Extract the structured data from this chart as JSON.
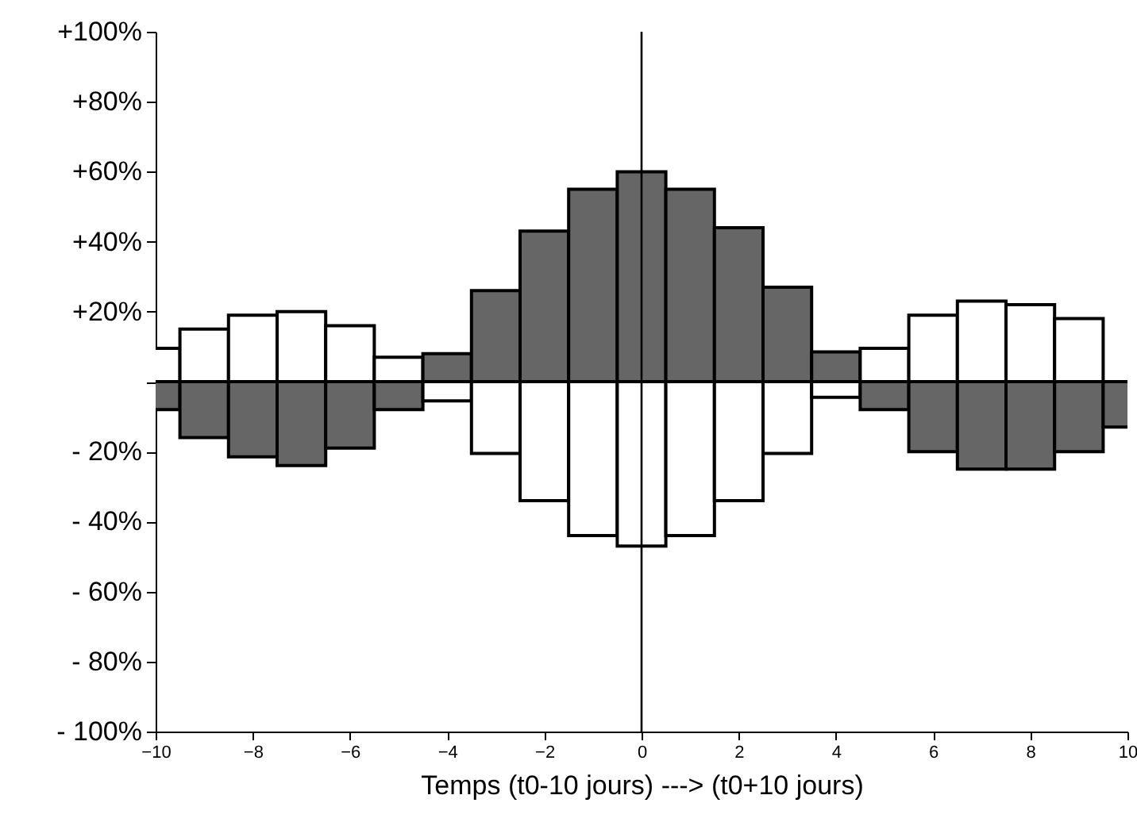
{
  "chart_data": {
    "type": "bar",
    "xlabel": "Temps  (t0-10 jours) ---> (t0+10 jours)",
    "x": [
      -10,
      -9,
      -8,
      -7,
      -6,
      -5,
      -4,
      -3,
      -2,
      -1,
      0,
      1,
      2,
      3,
      4,
      5,
      6,
      7,
      8,
      9,
      10
    ],
    "series": [
      {
        "x": [
          -10,
          -9,
          -8,
          -7,
          -6,
          -5,
          -4,
          -3,
          -2,
          -1,
          0,
          1,
          2,
          3,
          4,
          5,
          6,
          7,
          8,
          9
        ],
        "colors": [
          "#ffffff",
          "#ffffff",
          "#ffffff",
          "#ffffff",
          "#ffffff",
          "#ffffff",
          "#666666",
          "#666666",
          "#666666",
          "#666666",
          "#666666",
          "#666666",
          "#666666",
          "#666666",
          "#666666",
          "#ffffff",
          "#ffffff",
          "#ffffff",
          "#ffffff",
          "#ffffff"
        ],
        "values": [
          9.5,
          15,
          19,
          20,
          16,
          7,
          8,
          26,
          43,
          55,
          60,
          55,
          44,
          27,
          8.5,
          9.5,
          19,
          23,
          22,
          18
        ]
      },
      {
        "colors": [
          "#666666",
          "#666666",
          "#666666",
          "#666666",
          "#666666",
          "#666666",
          "#ffffff",
          "#ffffff",
          "#ffffff",
          "#ffffff",
          "#ffffff",
          "#ffffff",
          "#ffffff",
          "#ffffff",
          "#ffffff",
          "#666666",
          "#666666",
          "#666666",
          "#666666",
          "#666666",
          "#666666"
        ],
        "values": [
          -8,
          -16,
          -21.5,
          -24,
          -19,
          -8,
          -5.5,
          -20.5,
          -34,
          -44,
          -47,
          -44,
          -34,
          -20.5,
          -4.5,
          -8,
          -20,
          -25,
          -25,
          -20,
          -13
        ]
      }
    ],
    "xlim": [
      -10,
      10
    ],
    "xticks": [
      {
        "value": -10,
        "label": "−10"
      },
      {
        "value": -8,
        "label": "−8"
      },
      {
        "value": -6,
        "label": "−6"
      },
      {
        "value": -4,
        "label": "−4"
      },
      {
        "value": -2,
        "label": "−2"
      },
      0,
      2,
      4,
      6,
      8,
      10
    ],
    "ylim": [
      -100,
      100
    ],
    "yticks": [
      {
        "value": -100,
        "label": "- 100%"
      },
      {
        "value": -80,
        "label": "- 80%"
      },
      {
        "value": -60,
        "label": "- 60%"
      },
      {
        "value": -40,
        "label": "- 40%"
      },
      {
        "value": -20,
        "label": "- 20%"
      },
      {
        "value": 0,
        "label": null
      },
      {
        "value": 20,
        "label": "+20%"
      },
      {
        "value": 40,
        "label": "+40%"
      },
      {
        "value": 60,
        "label": "+60%"
      },
      {
        "value": 80,
        "label": "+80%"
      },
      {
        "value": 100,
        "label": "+100%"
      }
    ],
    "ref_lines": [
      {
        "axis": "x",
        "value": 0
      }
    ],
    "stacked": true,
    "grid": false
  }
}
